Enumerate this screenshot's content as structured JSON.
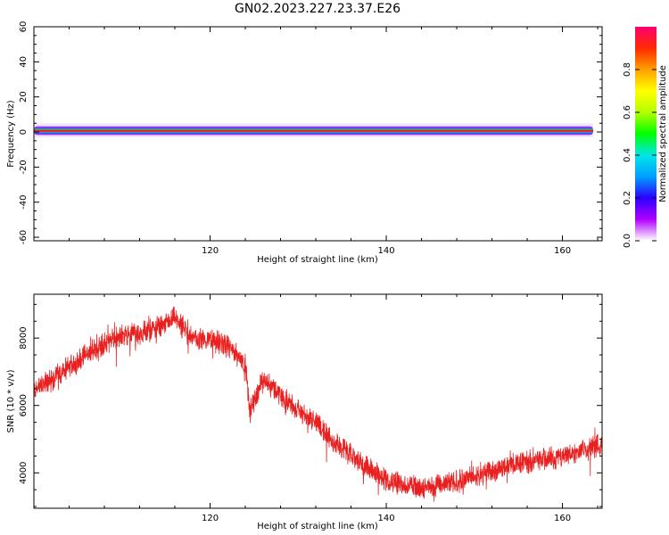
{
  "title": "GN02.2023.227.23.37.E26",
  "chart_data": [
    {
      "type": "heatmap",
      "xlabel": "Height of straight line (km)",
      "ylabel": "Frequency (Hz)",
      "xlim": [
        100,
        164.5
      ],
      "ylim": [
        -62,
        60
      ],
      "xticks": [
        "120",
        "140",
        "160"
      ],
      "yticks": [
        "-60",
        "-40",
        "-20",
        "0",
        "20",
        "40",
        "60"
      ],
      "grid": false,
      "colorbar": {
        "label": "Normalized spectral amplitude",
        "ticks": [
          "0.0",
          "0.2",
          "0.4",
          "0.6",
          "0.8"
        ],
        "range": [
          0,
          1
        ],
        "colors": [
          "#ffffff",
          "#b000ff",
          "#2a00ff",
          "#00a0ff",
          "#00e6e6",
          "#00ff00",
          "#b4ff00",
          "#ffff00",
          "#ffa000",
          "#ff2a00",
          "#ff0070"
        ]
      },
      "band": {
        "x_start": 100,
        "x_end": 163.5,
        "center_freq_hz": 0.5,
        "peak_amplitude": 0.95
      }
    },
    {
      "type": "line",
      "xlabel": "Height of straight line (km)",
      "ylabel": "SNR (10 * v/v)",
      "xlim": [
        100,
        164.5
      ],
      "ylim": [
        2950,
        9300
      ],
      "xticks": [
        "120",
        "140",
        "160"
      ],
      "yticks": [
        "4000",
        "6000",
        "8000"
      ],
      "grid": false,
      "line_color": "#e82020",
      "series": [
        {
          "x": [
            100,
            102,
            104,
            106,
            108,
            110,
            112,
            114,
            115,
            116,
            118,
            120,
            122,
            124,
            124.5,
            126,
            128,
            130,
            132,
            134,
            136,
            138,
            140,
            142,
            144,
            146,
            148,
            150,
            152,
            154,
            156,
            158,
            160,
            162,
            164
          ],
          "values": [
            6450,
            6750,
            7150,
            7500,
            7850,
            8050,
            8150,
            8300,
            8400,
            8600,
            8000,
            7950,
            7750,
            7250,
            5800,
            6800,
            6300,
            5850,
            5500,
            4950,
            4500,
            4150,
            3800,
            3650,
            3550,
            3600,
            3750,
            3900,
            4050,
            4250,
            4350,
            4400,
            4500,
            4650,
            4800
          ]
        }
      ]
    }
  ]
}
